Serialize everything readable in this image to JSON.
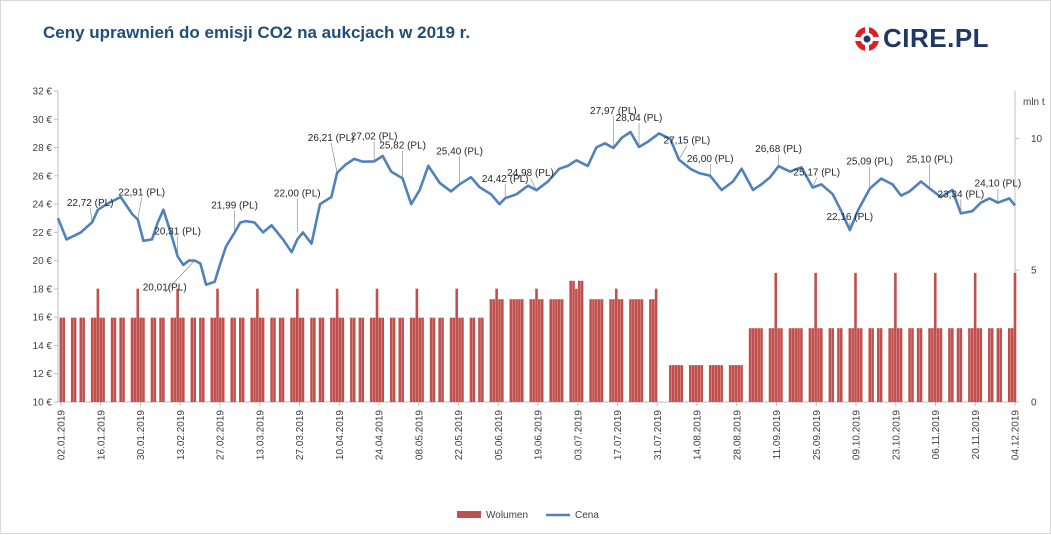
{
  "header": {
    "title": "Ceny uprawnień do emisji CO2 na aukcjach w 2019 r.",
    "logo_text": "CIRE.PL"
  },
  "colors": {
    "price_line": "#4f81bd",
    "volume_bar": "#c0504d",
    "volume_bar_dark": "#9b2d2a",
    "axis": "#bfbfbf",
    "title": "#1f4e79",
    "logo_red": "#e02020"
  },
  "chart_data": {
    "type": "bar+line",
    "title": "Ceny uprawnień do emisji CO2 na aukcjach w 2019 r.",
    "y_left": {
      "label": "",
      "min": 10,
      "max": 32,
      "step": 2,
      "unit": " €",
      "ticks": [
        "10 €",
        "12 €",
        "14 €",
        "16 €",
        "18 €",
        "20 €",
        "22 €",
        "24 €",
        "26 €",
        "28 €",
        "30 €",
        "32 €"
      ]
    },
    "y_right": {
      "label": "mln t",
      "min": 0,
      "max": 11.8,
      "ticks": [
        0,
        5,
        10
      ]
    },
    "x_range": [
      "2019-01-02",
      "2019-12-04"
    ],
    "x_tick_labels": [
      "02.01.2019",
      "16.01.2019",
      "30.01.2019",
      "13.02.2019",
      "27.02.2019",
      "13.03.2019",
      "27.03.2019",
      "10.04.2019",
      "24.04.2019",
      "08.05.2019",
      "22.05.2019",
      "05.06.2019",
      "19.06.2019",
      "03.07.2019",
      "17.07.2019",
      "31.07.2019",
      "14.08.2019",
      "28.08.2019",
      "11.09.2019",
      "25.09.2019",
      "09.10.2019",
      "23.10.2019",
      "06.11.2019",
      "20.11.2019",
      "04.12.2019"
    ],
    "legend": {
      "position": "bottom",
      "entries": [
        "Wolumen",
        "Cena"
      ]
    },
    "series": [
      {
        "name": "Cena",
        "kind": "line",
        "points": [
          [
            "2019-01-02",
            23.0
          ],
          [
            "2019-01-05",
            21.5
          ],
          [
            "2019-01-10",
            22.0
          ],
          [
            "2019-01-14",
            22.72
          ],
          [
            "2019-01-16",
            23.6
          ],
          [
            "2019-01-20",
            24.1
          ],
          [
            "2019-01-24",
            24.5
          ],
          [
            "2019-01-28",
            23.3
          ],
          [
            "2019-01-30",
            22.91
          ],
          [
            "2019-02-01",
            21.4
          ],
          [
            "2019-02-04",
            21.5
          ],
          [
            "2019-02-06",
            22.7
          ],
          [
            "2019-02-08",
            23.6
          ],
          [
            "2019-02-11",
            21.7
          ],
          [
            "2019-02-13",
            20.31
          ],
          [
            "2019-02-15",
            19.7
          ],
          [
            "2019-02-17",
            20.0
          ],
          [
            "2019-02-19",
            20.01
          ],
          [
            "2019-02-21",
            19.8
          ],
          [
            "2019-02-23",
            18.3
          ],
          [
            "2019-02-26",
            18.5
          ],
          [
            "2019-02-28",
            19.8
          ],
          [
            "2019-03-02",
            21.0
          ],
          [
            "2019-03-05",
            21.99
          ],
          [
            "2019-03-07",
            22.7
          ],
          [
            "2019-03-09",
            22.8
          ],
          [
            "2019-03-12",
            22.7
          ],
          [
            "2019-03-15",
            22.0
          ],
          [
            "2019-03-18",
            22.5
          ],
          [
            "2019-03-22",
            21.5
          ],
          [
            "2019-03-25",
            20.6
          ],
          [
            "2019-03-27",
            21.5
          ],
          [
            "2019-03-29",
            22.0
          ],
          [
            "2019-04-01",
            21.2
          ],
          [
            "2019-04-04",
            24.0
          ],
          [
            "2019-04-08",
            24.5
          ],
          [
            "2019-04-10",
            26.21
          ],
          [
            "2019-04-13",
            26.8
          ],
          [
            "2019-04-16",
            27.2
          ],
          [
            "2019-04-19",
            27.0
          ],
          [
            "2019-04-23",
            27.02
          ],
          [
            "2019-04-26",
            27.4
          ],
          [
            "2019-04-29",
            26.3
          ],
          [
            "2019-05-03",
            25.82
          ],
          [
            "2019-05-06",
            24.0
          ],
          [
            "2019-05-09",
            25.0
          ],
          [
            "2019-05-12",
            26.7
          ],
          [
            "2019-05-16",
            25.5
          ],
          [
            "2019-05-20",
            24.9
          ],
          [
            "2019-05-23",
            25.4
          ],
          [
            "2019-05-27",
            25.9
          ],
          [
            "2019-05-30",
            25.2
          ],
          [
            "2019-06-03",
            24.7
          ],
          [
            "2019-06-06",
            24.0
          ],
          [
            "2019-06-08",
            24.42
          ],
          [
            "2019-06-12",
            24.7
          ],
          [
            "2019-06-16",
            25.3
          ],
          [
            "2019-06-19",
            24.98
          ],
          [
            "2019-06-23",
            25.6
          ],
          [
            "2019-06-27",
            26.5
          ],
          [
            "2019-06-30",
            26.7
          ],
          [
            "2019-07-03",
            27.1
          ],
          [
            "2019-07-07",
            26.7
          ],
          [
            "2019-07-10",
            28.0
          ],
          [
            "2019-07-13",
            28.3
          ],
          [
            "2019-07-16",
            27.97
          ],
          [
            "2019-07-19",
            28.7
          ],
          [
            "2019-07-22",
            29.1
          ],
          [
            "2019-07-25",
            28.04
          ],
          [
            "2019-07-28",
            28.4
          ],
          [
            "2019-08-01",
            29.0
          ],
          [
            "2019-08-05",
            28.6
          ],
          [
            "2019-08-08",
            27.15
          ],
          [
            "2019-08-12",
            26.5
          ],
          [
            "2019-08-15",
            26.2
          ],
          [
            "2019-08-19",
            26.0
          ],
          [
            "2019-08-23",
            25.0
          ],
          [
            "2019-08-27",
            25.6
          ],
          [
            "2019-08-30",
            26.5
          ],
          [
            "2019-09-03",
            25.0
          ],
          [
            "2019-09-06",
            25.4
          ],
          [
            "2019-09-09",
            25.9
          ],
          [
            "2019-09-12",
            26.68
          ],
          [
            "2019-09-16",
            26.3
          ],
          [
            "2019-09-20",
            26.6
          ],
          [
            "2019-09-24",
            25.17
          ],
          [
            "2019-09-27",
            25.4
          ],
          [
            "2019-10-01",
            24.7
          ],
          [
            "2019-10-04",
            23.5
          ],
          [
            "2019-10-07",
            22.16
          ],
          [
            "2019-10-10",
            23.6
          ],
          [
            "2019-10-14",
            25.09
          ],
          [
            "2019-10-18",
            25.8
          ],
          [
            "2019-10-22",
            25.4
          ],
          [
            "2019-10-25",
            24.6
          ],
          [
            "2019-10-28",
            24.9
          ],
          [
            "2019-11-01",
            25.6
          ],
          [
            "2019-11-04",
            25.1
          ],
          [
            "2019-11-08",
            24.5
          ],
          [
            "2019-11-12",
            25.0
          ],
          [
            "2019-11-15",
            23.34
          ],
          [
            "2019-11-19",
            23.5
          ],
          [
            "2019-11-22",
            24.1
          ],
          [
            "2019-11-25",
            24.4
          ],
          [
            "2019-11-28",
            24.1
          ],
          [
            "2019-12-02",
            24.4
          ],
          [
            "2019-12-04",
            23.9
          ]
        ]
      },
      {
        "name": "Wolumen",
        "kind": "bar",
        "base": 3.2,
        "peak_bars": [
          "2019-01-16",
          "2019-01-30",
          "2019-02-13",
          "2019-02-27",
          "2019-03-13",
          "2019-03-27",
          "2019-04-10",
          "2019-04-24",
          "2019-05-08",
          "2019-05-22",
          "2019-06-05",
          "2019-06-19",
          "2019-07-03",
          "2019-07-17",
          "2019-07-31",
          "2019-09-11",
          "2019-09-25",
          "2019-10-09",
          "2019-10-23",
          "2019-11-06",
          "2019-11-20",
          "2019-12-04"
        ]
      }
    ],
    "annotations": [
      {
        "date": "2019-01-14",
        "value": 22.72,
        "text": "22,72 (PL)"
      },
      {
        "date": "2019-01-30",
        "value": 22.91,
        "text": "22,91 (PL)"
      },
      {
        "date": "2019-02-19",
        "value": 20.01,
        "text": "20,01(PL)"
      },
      {
        "date": "2019-02-13",
        "value": 20.31,
        "text": "20,31 (PL)"
      },
      {
        "date": "2019-03-05",
        "value": 21.99,
        "text": "21,99 (PL)"
      },
      {
        "date": "2019-03-27",
        "value": 22.0,
        "text": "22,00 (PL)"
      },
      {
        "date": "2019-04-10",
        "value": 26.21,
        "text": "26,21 (PL)"
      },
      {
        "date": "2019-04-23",
        "value": 27.02,
        "text": "27,02 (PL)"
      },
      {
        "date": "2019-05-03",
        "value": 25.82,
        "text": "25,82 (PL)"
      },
      {
        "date": "2019-05-23",
        "value": 25.4,
        "text": "25,40 (PL)"
      },
      {
        "date": "2019-06-08",
        "value": 24.42,
        "text": "24,42 (PL)"
      },
      {
        "date": "2019-06-19",
        "value": 24.98,
        "text": "24,98 (PL)"
      },
      {
        "date": "2019-07-16",
        "value": 27.97,
        "text": "27,97 (PL)"
      },
      {
        "date": "2019-07-25",
        "value": 28.04,
        "text": "28,04 (PL)"
      },
      {
        "date": "2019-08-08",
        "value": 27.15,
        "text": "27,15 (PL)"
      },
      {
        "date": "2019-08-19",
        "value": 26.0,
        "text": "26,00 (PL)"
      },
      {
        "date": "2019-09-12",
        "value": 26.68,
        "text": "26,68 (PL)"
      },
      {
        "date": "2019-09-24",
        "value": 25.17,
        "text": "25,17 (PL)"
      },
      {
        "date": "2019-10-07",
        "value": 22.16,
        "text": "22,16 (PL)"
      },
      {
        "date": "2019-10-14",
        "value": 25.09,
        "text": "25,09 (PL)"
      },
      {
        "date": "2019-11-04",
        "value": 25.1,
        "text": "25,10 (PL)"
      },
      {
        "date": "2019-11-15",
        "value": 23.34,
        "text": "23,34 (PL)"
      },
      {
        "date": "2019-11-28",
        "value": 24.1,
        "text": "24,10 (PL)"
      }
    ]
  }
}
